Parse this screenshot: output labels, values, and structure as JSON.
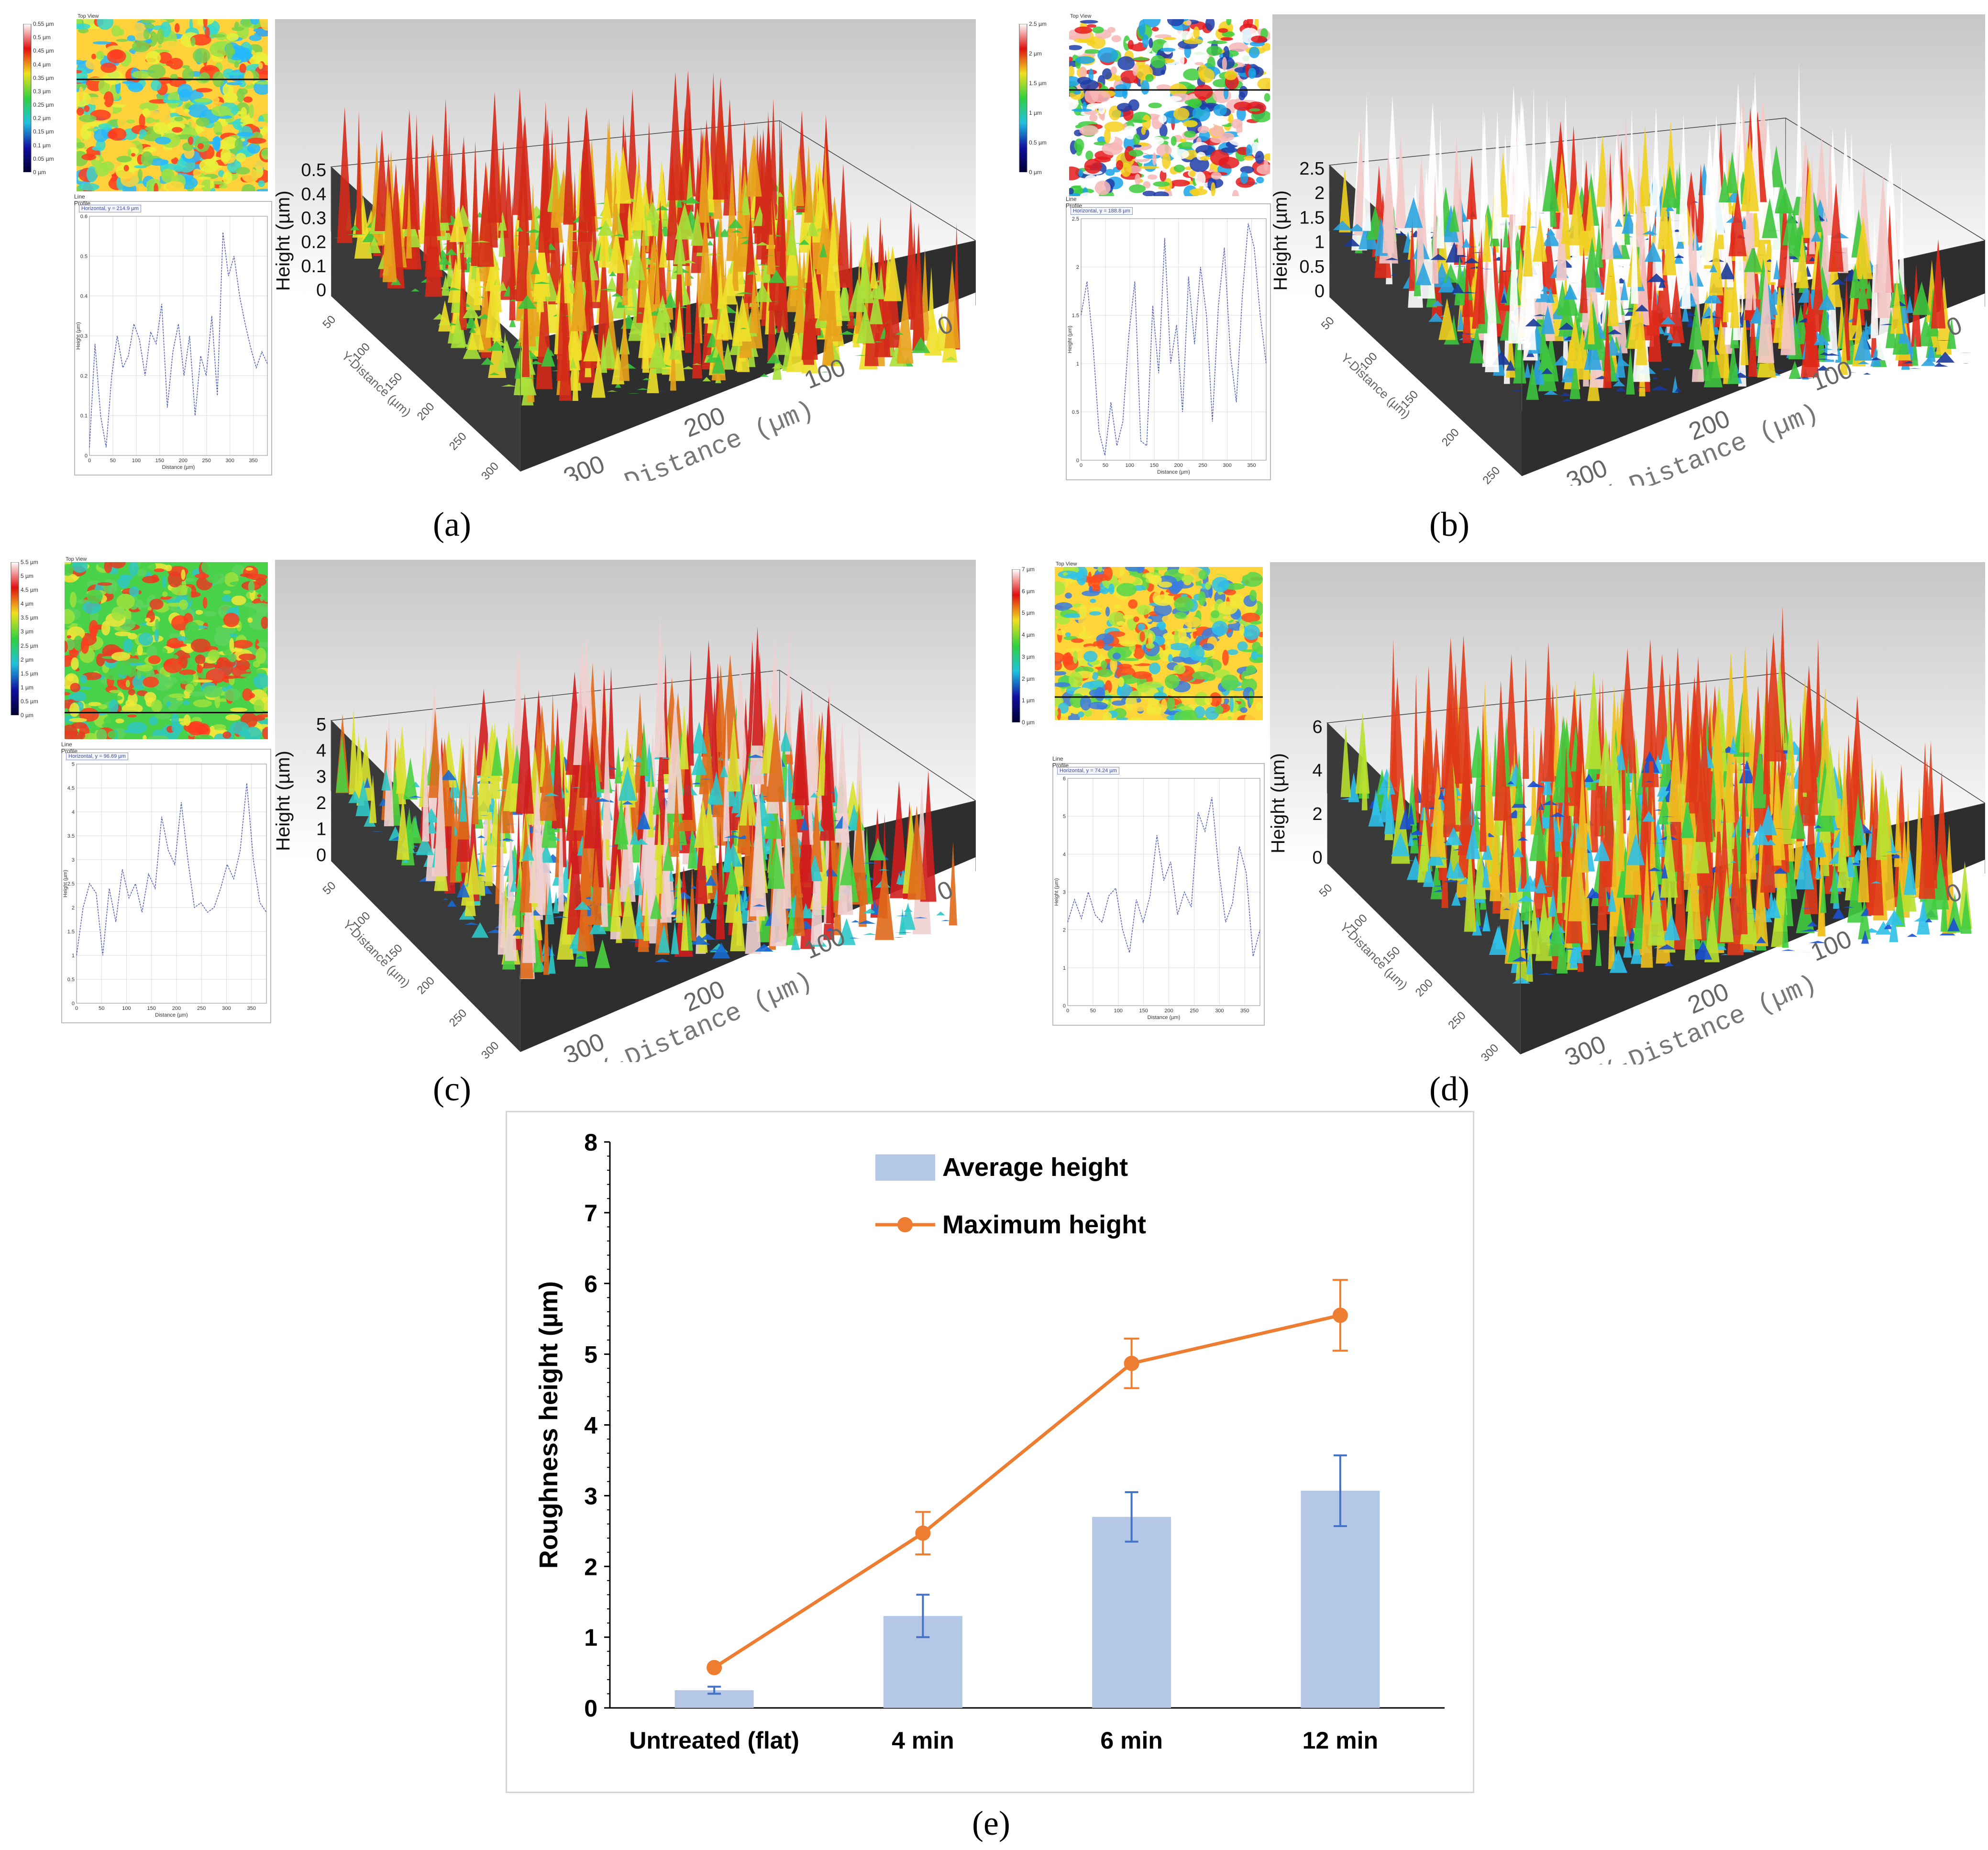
{
  "panels": [
    {
      "caption": "(a)",
      "topview_title": "Top View",
      "legend_ticks": [
        "0.55 µm",
        "0.5 µm",
        "0.45 µm",
        "0.4 µm",
        "0.35 µm",
        "0.3 µm",
        "0.25 µm",
        "0.2 µm",
        "0.15 µm",
        "0.1 µm",
        "0.05 µm",
        "0 µm"
      ],
      "profile_title": "Line Profile",
      "profile_box": "Horizontal, y = 214.9 µm",
      "profile_yticks": [
        "0.6",
        "0.5",
        "0.4",
        "0.3",
        "0.2",
        "0.1",
        "0"
      ],
      "profile_xticks": [
        "0",
        "50",
        "100",
        "150",
        "200",
        "250",
        "300",
        "350"
      ],
      "profile_xlabel": "Distance (µm)",
      "profile_ylabel": "Height (µm)",
      "render_height_label": "Height (µm)",
      "render_zticks": [
        "0.5",
        "0.4",
        "0.3",
        "0.2",
        "0.1",
        "0"
      ],
      "render_x_label": "X-Distance (µm)",
      "render_xticks": [
        "300",
        "200",
        "100",
        "0"
      ],
      "render_y_label": "Y-Distance (µm)",
      "render_yticks": [
        "50",
        "100",
        "150",
        "200",
        "250",
        "300"
      ]
    },
    {
      "caption": "(b)",
      "topview_title": "Top View",
      "legend_ticks": [
        "2.5 µm",
        "2 µm",
        "1.5 µm",
        "1 µm",
        "0.5 µm",
        "0 µm"
      ],
      "profile_title": "Line Profile",
      "profile_box": "Horizontal, y = 188.8 µm",
      "profile_yticks": [
        "2.5",
        "2",
        "1.5",
        "1",
        "0.5",
        "0"
      ],
      "profile_xticks": [
        "0",
        "50",
        "100",
        "150",
        "200",
        "250",
        "300",
        "350"
      ],
      "profile_xlabel": "Distance (µm)",
      "profile_ylabel": "Height (µm)",
      "render_height_label": "Height (µm)",
      "render_zticks": [
        "2.5",
        "2",
        "1.5",
        "1",
        "0.5",
        "0"
      ],
      "render_x_label": "X-Distance (µm)",
      "render_xticks": [
        "300",
        "200",
        "100",
        "0"
      ],
      "render_y_label": "Y-Distance (µm)",
      "render_yticks": [
        "50",
        "100",
        "150",
        "200",
        "250"
      ]
    },
    {
      "caption": "(c)",
      "topview_title": "Top View",
      "legend_ticks": [
        "5.5 µm",
        "5 µm",
        "4.5 µm",
        "4 µm",
        "3.5 µm",
        "3 µm",
        "2.5 µm",
        "2 µm",
        "1.5 µm",
        "1 µm",
        "0.5 µm",
        "0 µm"
      ],
      "profile_title": "Line Profile",
      "profile_box": "Horizontal, y = 96.69 µm",
      "profile_yticks": [
        "5",
        "4.5",
        "4",
        "3.5",
        "3",
        "2.5",
        "2",
        "1.5",
        "1",
        "0.5",
        "0"
      ],
      "profile_xticks": [
        "0",
        "50",
        "100",
        "150",
        "200",
        "250",
        "300",
        "350"
      ],
      "profile_xlabel": "Distance (µm)",
      "profile_ylabel": "Height (µm)",
      "render_height_label": "Height (µm)",
      "render_zticks": [
        "5",
        "4",
        "3",
        "2",
        "1",
        "0"
      ],
      "render_x_label": "X-Distance (µm)",
      "render_xticks": [
        "300",
        "200",
        "100",
        "0"
      ],
      "render_y_label": "Y-Distance (µm)",
      "render_yticks": [
        "50",
        "100",
        "150",
        "200",
        "250",
        "300"
      ]
    },
    {
      "caption": "(d)",
      "topview_title": "Top View",
      "legend_ticks": [
        "7 µm",
        "6 µm",
        "5 µm",
        "4 µm",
        "3 µm",
        "2 µm",
        "1 µm",
        "0 µm"
      ],
      "profile_title": "Line Profile",
      "profile_box": "Horizontal, y = 74.24 µm",
      "profile_yticks": [
        "6",
        "5",
        "4",
        "3",
        "2",
        "1",
        "0"
      ],
      "profile_xticks": [
        "0",
        "50",
        "100",
        "150",
        "200",
        "250",
        "300",
        "350"
      ],
      "profile_xlabel": "Distance (µm)",
      "profile_ylabel": "Height (µm)",
      "render_height_label": "Height (µm)",
      "render_zticks": [
        "6",
        "4",
        "2",
        "0"
      ],
      "render_x_label": "X-Distance (µm)",
      "render_xticks": [
        "300",
        "200",
        "100",
        "0"
      ],
      "render_y_label": "Y-Distance (µm)",
      "render_yticks": [
        "50",
        "100",
        "150",
        "200",
        "250",
        "300"
      ]
    }
  ],
  "chart_caption": "(e)",
  "colors": {
    "bar": "#b4c7e7",
    "line": "#ed7d31",
    "errorbar": "#4472c4",
    "axis": "#000000"
  },
  "chart_data": {
    "type": "bar",
    "title": "",
    "xlabel": "",
    "ylabel": "Roughness height (µm)",
    "ylim": [
      0,
      8
    ],
    "yticks": [
      0,
      1,
      2,
      3,
      4,
      5,
      6,
      7,
      8
    ],
    "categories": [
      "Untreated (flat)",
      "4 min",
      "6 min",
      "12 min"
    ],
    "series": [
      {
        "name": "Average height",
        "type": "bar",
        "values": [
          0.25,
          1.3,
          2.7,
          3.07
        ],
        "errors": [
          0.05,
          0.3,
          0.35,
          0.5
        ]
      },
      {
        "name": "Maximum height",
        "type": "line",
        "values": [
          0.57,
          2.47,
          4.87,
          5.55
        ],
        "errors": [
          0,
          0.3,
          0.35,
          0.5
        ]
      }
    ],
    "legend": "top-left"
  }
}
